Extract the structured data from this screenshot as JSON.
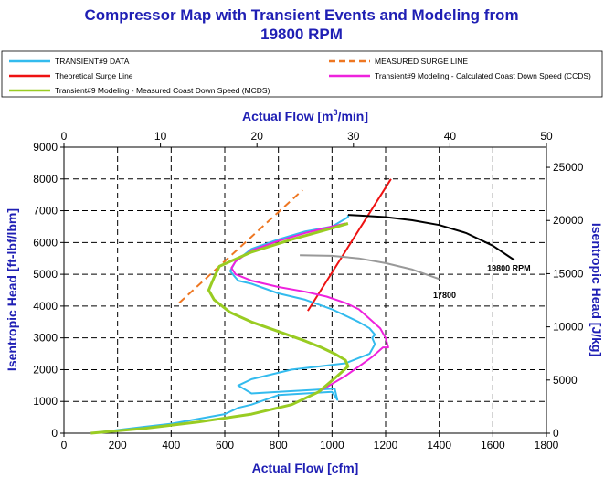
{
  "chart_data": {
    "type": "line",
    "title_line1": "Compressor Map with Transient Events and Modeling from",
    "title_line2": "19800 RPM",
    "xlabel": "Actual Flow [cfm]",
    "x2label_prefix": "Actual Flow [m",
    "x2label_sup": "3",
    "x2label_suffix": "/min]",
    "ylabel": "Isentropic Head [ft-lbf/lbm]",
    "y2label": "Isentropic Head [J/kg]",
    "xlim": [
      0,
      1800
    ],
    "ylim": [
      0,
      9000
    ],
    "x2lim": [
      0,
      50
    ],
    "y2lim": [
      0,
      26895
    ],
    "xticks": [
      "0",
      "200",
      "400",
      "600",
      "800",
      "1000",
      "1200",
      "1400",
      "1600",
      "1800"
    ],
    "yticks": [
      "0",
      "1000",
      "2000",
      "3000",
      "4000",
      "5000",
      "6000",
      "7000",
      "8000",
      "9000"
    ],
    "x2ticks": [
      "0",
      "10",
      "20",
      "30",
      "40",
      "50"
    ],
    "y2ticks": [
      "0",
      "5000",
      "10000",
      "15000",
      "20000",
      "25000"
    ],
    "grid": true,
    "legend": [
      {
        "label": "TRANSIENT#9 DATA",
        "color": "#33bbee",
        "dash": false
      },
      {
        "label": "MEASURED SURGE LINE",
        "color": "#ee7722",
        "dash": true
      },
      {
        "label": "Theoretical Surge Line",
        "color": "#ee1111",
        "dash": false
      },
      {
        "label": "Transient#9 Modeling - Calculated Coast Down Speed (CCDS)",
        "color": "#ee22dd",
        "dash": false
      },
      {
        "label": "Transient#9 Modeling - Measured Coast Down Speed (MCDS)",
        "color": "#99cc22",
        "dash": false
      }
    ],
    "series": [
      {
        "name": "TRANSIENT#9 DATA",
        "color": "#33bbee",
        "dash": false,
        "x": [
          100,
          200,
          300,
          400,
          500,
          600,
          650,
          700,
          800,
          1000,
          1020,
          1010,
          800,
          700,
          650,
          700,
          750,
          850,
          950,
          1050,
          1140,
          1160,
          1150,
          1160,
          1140,
          1100,
          1050,
          1000,
          900,
          800,
          700,
          650,
          640,
          620,
          640,
          700,
          800,
          900,
          1000,
          1040,
          1060,
          1060
        ],
        "y": [
          0,
          100,
          200,
          300,
          450,
          600,
          800,
          900,
          1200,
          1300,
          1050,
          1400,
          1300,
          1250,
          1500,
          1700,
          1800,
          2000,
          2100,
          2200,
          2500,
          2800,
          3000,
          3100,
          3300,
          3500,
          3700,
          3900,
          4200,
          4400,
          4700,
          4800,
          4900,
          5100,
          5400,
          5800,
          6100,
          6350,
          6500,
          6700,
          6800,
          6870
        ]
      },
      {
        "name": "MEASURED SURGE LINE",
        "color": "#ee7722",
        "dash": true,
        "x": [
          430,
          890
        ],
        "y": [
          4100,
          7650
        ]
      },
      {
        "name": "Theoretical Surge Line",
        "color": "#ee1111",
        "dash": false,
        "x": [
          910,
          1220
        ],
        "y": [
          3850,
          8000
        ]
      },
      {
        "name": "Transient#9 Modeling - Calculated Coast Down Speed (CCDS)",
        "color": "#ee22dd",
        "dash": false,
        "x": [
          100,
          300,
          500,
          700,
          850,
          950,
          1050,
          1100,
          1150,
          1190,
          1210,
          1200,
          1180,
          1140,
          1100,
          1050,
          980,
          900,
          800,
          700,
          640,
          625,
          640,
          700,
          800,
          900,
          1000,
          1050
        ],
        "y": [
          0,
          150,
          350,
          600,
          900,
          1300,
          1800,
          2100,
          2400,
          2700,
          2700,
          3000,
          3300,
          3600,
          3900,
          4100,
          4300,
          4450,
          4600,
          4800,
          5000,
          5200,
          5400,
          5750,
          6050,
          6300,
          6500,
          6600
        ]
      },
      {
        "name": "Transient#9 Modeling - Measured Coast Down Speed (MCDS)",
        "color": "#99cc22",
        "dash": false,
        "x": [
          100,
          300,
          500,
          700,
          850,
          950,
          1020,
          1060,
          1050,
          1010,
          960,
          900,
          800,
          700,
          620,
          560,
          540,
          560,
          580,
          700,
          850,
          1000,
          1060
        ],
        "y": [
          0,
          150,
          350,
          600,
          900,
          1300,
          1800,
          2100,
          2300,
          2500,
          2700,
          2900,
          3200,
          3500,
          3800,
          4200,
          4500,
          4900,
          5250,
          5700,
          6100,
          6450,
          6600
        ]
      },
      {
        "name": "19800 RPM",
        "color": "#000000",
        "dash": false,
        "x": [
          1060,
          1100,
          1200,
          1300,
          1400,
          1500,
          1600,
          1680
        ],
        "y": [
          6870,
          6850,
          6800,
          6700,
          6550,
          6300,
          5900,
          5450
        ]
      },
      {
        "name": "17800",
        "color": "#999999",
        "dash": false,
        "x": [
          880,
          1000,
          1100,
          1200,
          1300,
          1400
        ],
        "y": [
          5600,
          5580,
          5500,
          5350,
          5150,
          4850
        ]
      }
    ],
    "annotations": [
      {
        "text": "19800 RPM",
        "x": 1660,
        "y": 5100
      },
      {
        "text": "17800",
        "x": 1420,
        "y": 4250
      }
    ]
  }
}
